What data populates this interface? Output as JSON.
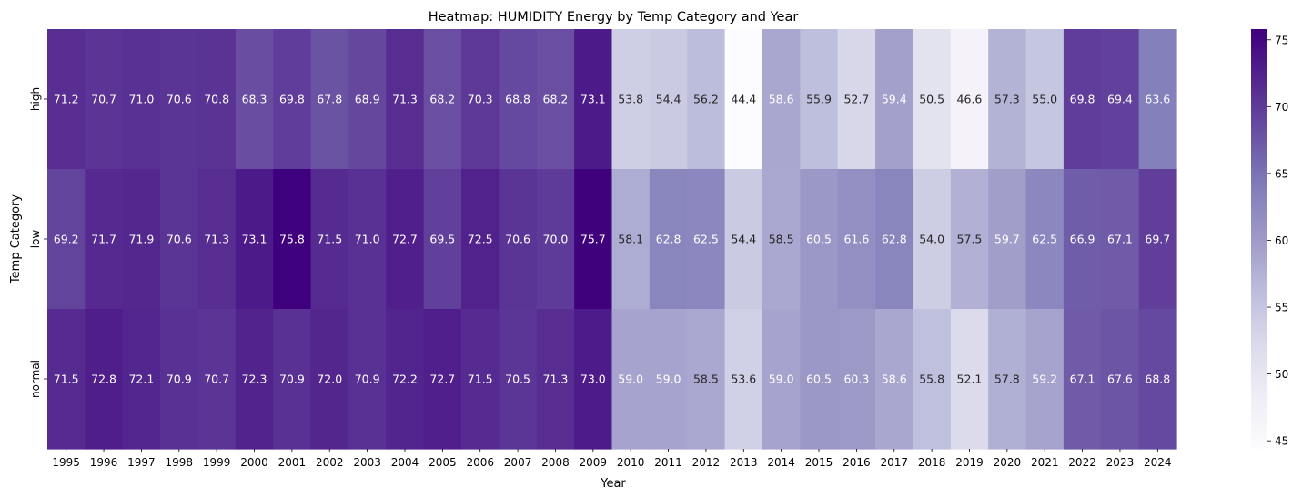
{
  "chart_data": {
    "type": "heatmap",
    "title": "Heatmap: HUMIDITY Energy by Temp Category and Year",
    "xlabel": "Year",
    "ylabel": "Temp Category",
    "x": [
      "1995",
      "1996",
      "1997",
      "1998",
      "1999",
      "2000",
      "2001",
      "2002",
      "2003",
      "2004",
      "2005",
      "2006",
      "2007",
      "2008",
      "2009",
      "2010",
      "2011",
      "2012",
      "2013",
      "2014",
      "2015",
      "2016",
      "2017",
      "2018",
      "2019",
      "2020",
      "2021",
      "2022",
      "2023",
      "2024"
    ],
    "y": [
      "high",
      "low",
      "normal"
    ],
    "values": [
      [
        71.2,
        70.7,
        71.0,
        70.6,
        70.8,
        68.3,
        69.8,
        67.8,
        68.9,
        71.3,
        68.2,
        70.3,
        68.8,
        68.2,
        73.1,
        53.8,
        54.4,
        56.2,
        44.4,
        58.6,
        55.9,
        52.7,
        59.4,
        50.5,
        46.6,
        57.3,
        55.0,
        69.8,
        69.4,
        63.6
      ],
      [
        69.2,
        71.7,
        71.9,
        70.6,
        71.3,
        73.1,
        75.8,
        71.5,
        71.0,
        72.7,
        69.5,
        72.5,
        70.6,
        70.0,
        75.7,
        58.1,
        62.8,
        62.5,
        54.4,
        58.5,
        60.5,
        61.6,
        62.8,
        54.0,
        57.5,
        59.7,
        62.5,
        66.9,
        67.1,
        69.7
      ],
      [
        71.5,
        72.8,
        72.1,
        70.9,
        70.7,
        72.3,
        70.9,
        72.0,
        70.9,
        72.2,
        72.7,
        71.5,
        70.5,
        71.3,
        73.0,
        59.0,
        59.0,
        58.5,
        53.6,
        59.0,
        60.5,
        60.3,
        58.6,
        55.8,
        52.1,
        57.8,
        59.2,
        67.1,
        67.6,
        68.8
      ]
    ],
    "colorbar": {
      "colormap": "Purples",
      "vmin": 44.4,
      "vmax": 75.8,
      "ticks": [
        "45",
        "50",
        "55",
        "60",
        "65",
        "70",
        "75"
      ],
      "placement": "right"
    },
    "annotations": true,
    "value_format": "0.1f"
  }
}
